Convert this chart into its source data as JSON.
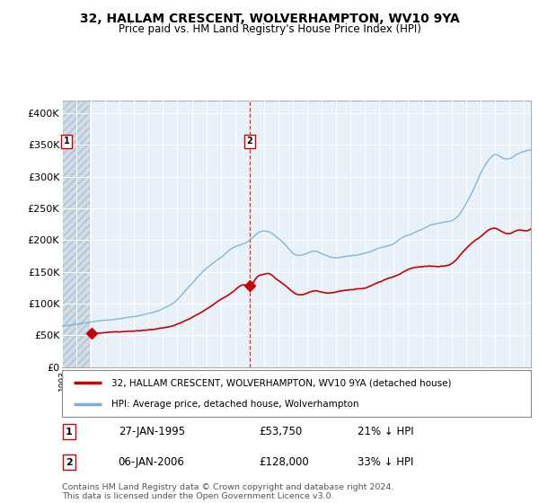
{
  "title": "32, HALLAM CRESCENT, WOLVERHAMPTON, WV10 9YA",
  "subtitle": "Price paid vs. HM Land Registry's House Price Index (HPI)",
  "legend_line1": "32, HALLAM CRESCENT, WOLVERHAMPTON, WV10 9YA (detached house)",
  "legend_line2": "HPI: Average price, detached house, Wolverhampton",
  "footer": "Contains HM Land Registry data © Crown copyright and database right 2024.\nThis data is licensed under the Open Government Licence v3.0.",
  "transaction1_date": "27-JAN-1995",
  "transaction1_price": "£53,750",
  "transaction1_hpi": "21% ↓ HPI",
  "transaction1_x": 1995.07,
  "transaction1_y": 53750,
  "transaction2_date": "06-JAN-2006",
  "transaction2_price": "£128,000",
  "transaction2_hpi": "33% ↓ HPI",
  "transaction2_x": 2006.02,
  "transaction2_y": 128000,
  "sale_color": "#cc0000",
  "hpi_color": "#7ab0d4",
  "background_plot": "#e8f0f8",
  "background_hatch_color": "#d0dce8",
  "ylim": [
    0,
    420000
  ],
  "xlim_start": 1993.0,
  "xlim_end": 2025.5,
  "yticks": [
    0,
    50000,
    100000,
    150000,
    200000,
    250000,
    300000,
    350000,
    400000
  ],
  "ytick_labels": [
    "£0",
    "£50K",
    "£100K",
    "£150K",
    "£200K",
    "£250K",
    "£300K",
    "£350K",
    "£400K"
  ]
}
